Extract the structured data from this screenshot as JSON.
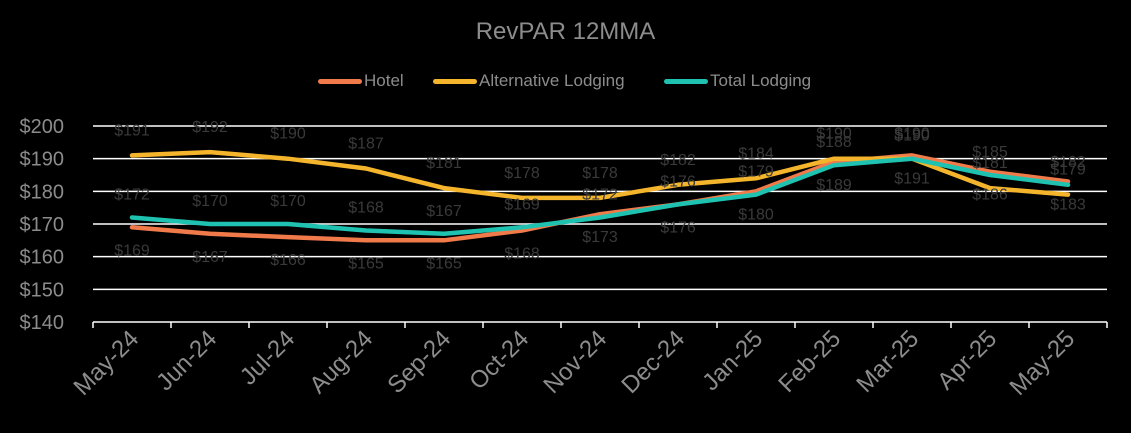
{
  "chart_data": {
    "type": "line",
    "title": "RevPAR 12MMA",
    "categories": [
      "May-24",
      "Jun-24",
      "Jul-24",
      "Aug-24",
      "Sep-24",
      "Oct-24",
      "Nov-24",
      "Dec-24",
      "Jan-25",
      "Feb-25",
      "Mar-25",
      "Apr-25",
      "May-25"
    ],
    "ylim": [
      140,
      200
    ],
    "yticks": [
      200,
      190,
      180,
      170,
      160,
      150,
      140
    ],
    "ytick_labels": [
      "$200",
      "$190",
      "$180",
      "$170",
      "$160",
      "$150",
      "$140"
    ],
    "grid": true,
    "legend_position": "top",
    "series": [
      {
        "name": "Hotel",
        "color": "#f07a4a",
        "values": [
          169,
          167,
          166,
          165,
          165,
          168,
          173,
          176,
          180,
          189,
          191,
          186,
          183
        ],
        "labels": [
          "$169",
          "$167",
          "$166",
          "$165",
          "$165",
          "$168",
          "$173",
          "$176",
          "$180",
          "$189",
          "$191",
          "$186",
          "$183"
        ]
      },
      {
        "name": "Alternative Lodging",
        "color": "#f4b52d",
        "values": [
          191,
          192,
          190,
          187,
          181,
          178,
          178,
          182,
          184,
          190,
          190,
          181,
          179
        ],
        "labels": [
          "$191",
          "$192",
          "$190",
          "$187",
          "$181",
          "$178",
          "$178",
          "$182",
          "$184",
          "$190",
          "$190",
          "$181",
          "$179"
        ]
      },
      {
        "name": "Total Lodging",
        "color": "#1fc2b0",
        "values": [
          172,
          170,
          170,
          168,
          167,
          169,
          172,
          176,
          179,
          188,
          190,
          185,
          182
        ],
        "labels": [
          "$172",
          "$170",
          "$170",
          "$168",
          "$167",
          "$169",
          "$172",
          "$176",
          "$179",
          "$188",
          "$190",
          "$185",
          "$182"
        ]
      }
    ]
  },
  "colors": {
    "background": "#000000",
    "text": "#8c8c8c",
    "label": "#3a3a3a",
    "grid": "#ffffff"
  }
}
